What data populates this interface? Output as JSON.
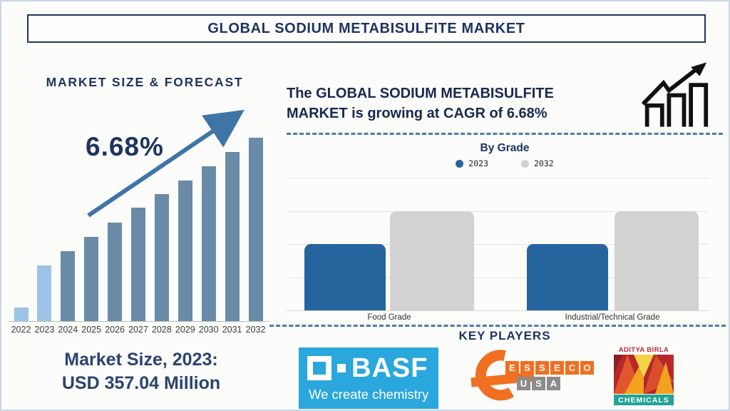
{
  "page_title": "GLOBAL SODIUM METABISULFITE MARKET",
  "colors": {
    "navy": "#1e3460",
    "bar_base": "#6a8ba8",
    "bar_highlight": "#9dc3e6",
    "arrow": "#3f74a6",
    "grade_2023": "#26649e",
    "grade_2032": "#d2d2d2",
    "dash": "#4a7cac",
    "icon_black": "#111111"
  },
  "left": {
    "heading": "MARKET SIZE & FORECAST",
    "cagr_label": "6.68%",
    "market_size_line1": "Market Size, 2023:",
    "market_size_line2": "USD 357.04 Million"
  },
  "right": {
    "cagr_line1": "The GLOBAL SODIUM METABISULFITE",
    "cagr_line2": "MARKET is growing at CAGR of 6.68%",
    "by_grade_title": "By Grade",
    "key_players_title": "KEY PLAYERS"
  },
  "legend": [
    {
      "label": "2023",
      "color": "#26649e"
    },
    {
      "label": "2032",
      "color": "#d2d2d2"
    }
  ],
  "logos": {
    "basf": {
      "name": "BASF",
      "tagline": "We create chemistry",
      "bg": "#2aa7dc"
    },
    "esseco": {
      "word1": "ESSECO",
      "word2": "USA",
      "orange": "#f06f21",
      "gray": "#8c8c8c"
    },
    "aditya": {
      "top": "ADITYA BIRLA",
      "bottom": "CHEMICALS",
      "red": "#c0272d",
      "teal": "#23a393"
    }
  },
  "chart_data": [
    {
      "type": "bar",
      "title": "MARKET SIZE & FORECAST",
      "subtitle_annotation": "6.68%",
      "note": "CAGR 6.68%; Market Size 2023 = USD 357.04 Million; no y-axis shown, values are relative depicted bar heights",
      "categories": [
        "2022",
        "2023",
        "2024",
        "2025",
        "2026",
        "2027",
        "2028",
        "2029",
        "2030",
        "2031",
        "2032"
      ],
      "values_relative": [
        19,
        78,
        98,
        118,
        138,
        159,
        178,
        197,
        217,
        237,
        257
      ],
      "bar_colors": [
        "#9dc3e6",
        "#9dc3e6",
        "#6a8ba8",
        "#6a8ba8",
        "#6a8ba8",
        "#6a8ba8",
        "#6a8ba8",
        "#6a8ba8",
        "#6a8ba8",
        "#6a8ba8",
        "#6a8ba8"
      ],
      "xlabel": "",
      "ylabel": "",
      "grid": false,
      "legend_position": "none"
    },
    {
      "type": "bar",
      "title": "By Grade",
      "categories": [
        "Food Grade",
        "Industrial/Technical Grade"
      ],
      "series": [
        {
          "name": "2023",
          "color": "#26649e",
          "values": [
            2,
            2
          ]
        },
        {
          "name": "2032",
          "color": "#d2d2d2",
          "values": [
            3,
            3
          ]
        }
      ],
      "ylim": [
        0,
        4
      ],
      "grid": true,
      "legend_position": "top",
      "note": "no y-axis tick labels shown; values estimated from gridlines (4 intervals)"
    }
  ]
}
